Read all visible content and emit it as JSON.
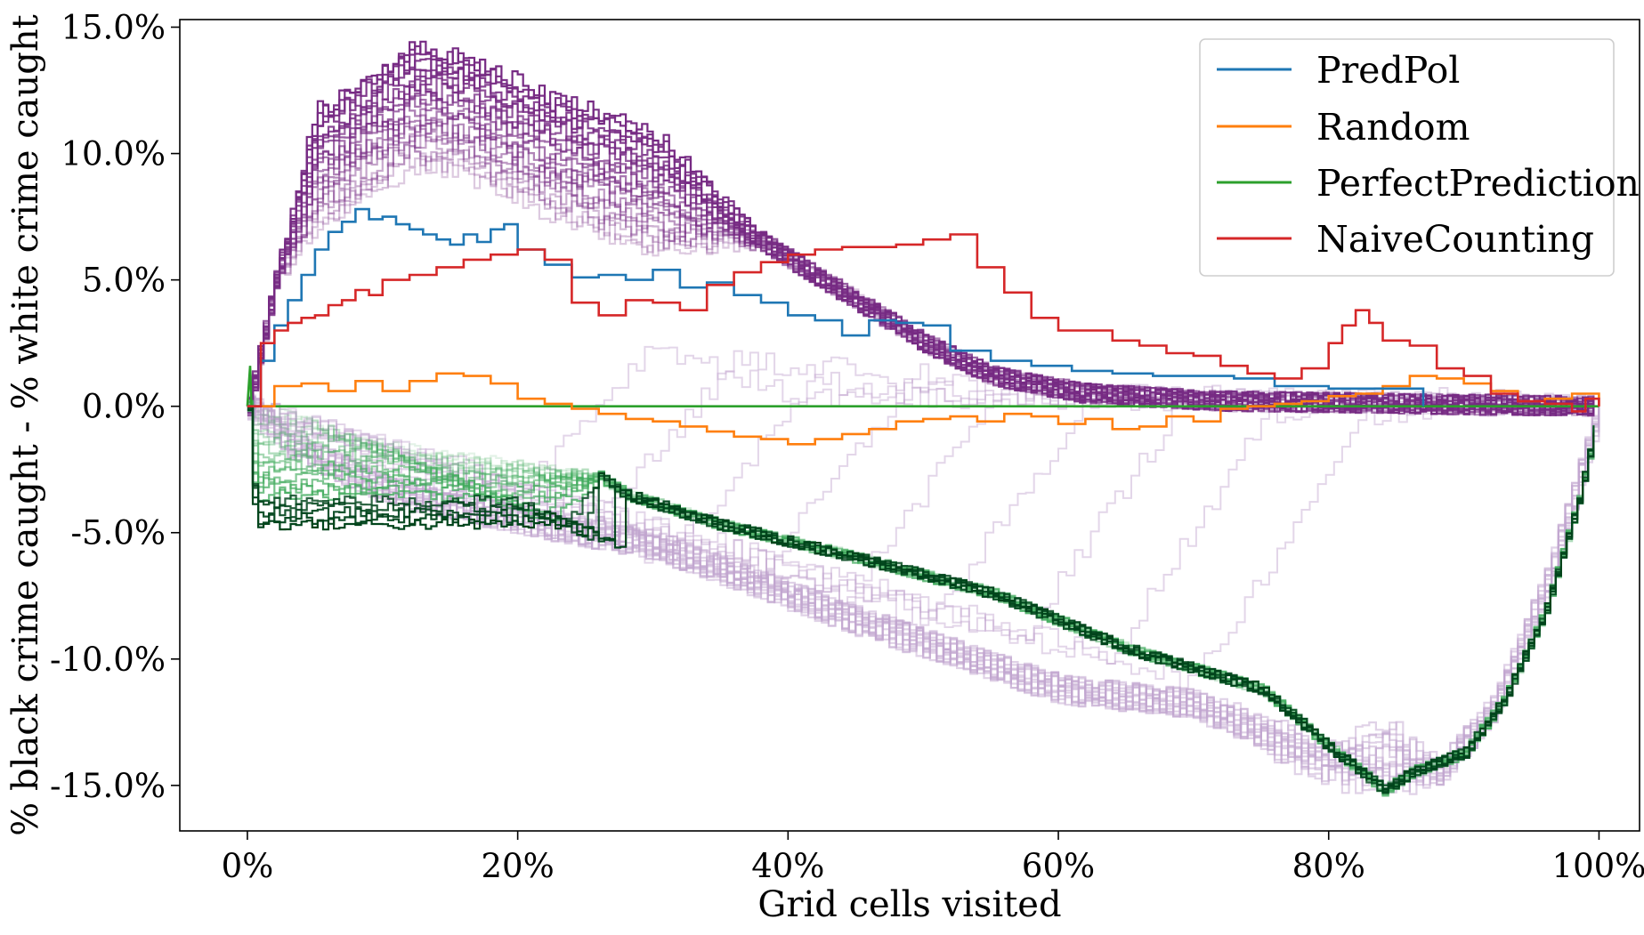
{
  "chart_data": {
    "type": "line",
    "xlabel": "Grid cells visited",
    "ylabel": "% black crime caught - % white crime caught",
    "xlim": [
      -5,
      103
    ],
    "ylim": [
      -16.8,
      15.3
    ],
    "xticks": [
      0,
      20,
      40,
      60,
      80,
      100
    ],
    "xtick_labels": [
      "0%",
      "20%",
      "40%",
      "60%",
      "80%",
      "100%"
    ],
    "yticks": [
      15,
      10,
      5,
      0,
      -5,
      -10,
      -15
    ],
    "ytick_labels": [
      "15.0%",
      "10.0%",
      "5.0%",
      "0.0%",
      "-5.0%",
      "-10.0%",
      "-15.0%"
    ],
    "grid": false,
    "legend_position": "top-right",
    "colors": {
      "PredPol": "#1f77b4",
      "Random": "#ff7f0e",
      "PerfectPrediction": "#2ca02c",
      "NaiveCounting": "#d62728",
      "purple_family": "#762a83",
      "green_family": "#1b5e20"
    },
    "series": [
      {
        "name": "PredPol",
        "x": [
          0,
          1,
          2,
          3,
          4,
          5,
          6,
          7,
          8,
          9,
          10,
          11,
          12,
          13,
          14,
          15,
          16,
          17,
          18,
          19,
          20,
          22,
          24,
          26,
          28,
          30,
          32,
          34,
          36,
          38,
          40,
          42,
          44,
          46,
          48,
          50,
          52,
          55,
          58,
          61,
          64,
          67,
          70,
          73,
          76,
          80,
          84,
          87
        ],
        "values": [
          0,
          1.8,
          3.2,
          4.2,
          5.2,
          6.2,
          6.9,
          7.3,
          7.8,
          7.4,
          7.5,
          7.2,
          7.0,
          6.8,
          6.6,
          6.4,
          6.8,
          6.5,
          7.0,
          7.2,
          6.2,
          5.6,
          5.1,
          5.2,
          5.0,
          5.4,
          4.7,
          4.9,
          4.4,
          4.1,
          3.6,
          3.4,
          2.8,
          3.4,
          3.3,
          3.2,
          2.2,
          1.8,
          1.6,
          1.4,
          1.3,
          1.2,
          1.2,
          1.1,
          0.8,
          0.7,
          0.7,
          0
        ]
      },
      {
        "name": "Random",
        "x": [
          0,
          2,
          4,
          6,
          8,
          10,
          12,
          14,
          16,
          18,
          20,
          22,
          24,
          26,
          28,
          30,
          32,
          34,
          36,
          38,
          40,
          42,
          44,
          46,
          48,
          50,
          52,
          54,
          56,
          58,
          60,
          62,
          64,
          66,
          68,
          70,
          72,
          74,
          76,
          78,
          80,
          82,
          84,
          86,
          88,
          90,
          92,
          94,
          96,
          98,
          100
        ],
        "values": [
          0,
          0.8,
          0.9,
          0.6,
          1.0,
          0.6,
          1.0,
          1.3,
          1.2,
          0.9,
          0.3,
          0.1,
          -0.1,
          -0.3,
          -0.5,
          -0.6,
          -0.8,
          -1.0,
          -1.2,
          -1.3,
          -1.5,
          -1.3,
          -1.1,
          -0.9,
          -0.6,
          -0.5,
          -0.4,
          -0.6,
          -0.3,
          -0.4,
          -0.7,
          -0.5,
          -0.9,
          -0.8,
          -0.4,
          -0.6,
          -0.1,
          0,
          0.1,
          0.2,
          0.4,
          0.5,
          0.8,
          1.2,
          1.1,
          0.9,
          0.6,
          0.2,
          0.3,
          0.5,
          0
        ]
      },
      {
        "name": "PerfectPrediction",
        "x": [
          0,
          0.2,
          0.3,
          100
        ],
        "values": [
          0,
          1.6,
          0,
          0
        ]
      },
      {
        "name": "NaiveCounting",
        "x": [
          0,
          1,
          2,
          3,
          4,
          5,
          6,
          7,
          8,
          9,
          10,
          12,
          14,
          16,
          18,
          20,
          22,
          24,
          26,
          28,
          30,
          32,
          34,
          36,
          38,
          40,
          42,
          44,
          46,
          48,
          50,
          52,
          54,
          56,
          58,
          60,
          62,
          64,
          66,
          68,
          70,
          72,
          74,
          76,
          78,
          80,
          81,
          82,
          83,
          84,
          86,
          88,
          90,
          92,
          94,
          96,
          98,
          99,
          100
        ],
        "values": [
          0,
          2.5,
          3.0,
          3.3,
          3.5,
          3.6,
          4.0,
          4.2,
          4.6,
          4.4,
          5.0,
          5.2,
          5.5,
          5.8,
          6.0,
          6.2,
          5.8,
          4.1,
          3.6,
          4.2,
          4.1,
          3.8,
          4.8,
          5.3,
          5.7,
          6.0,
          6.2,
          6.3,
          6.3,
          6.4,
          6.6,
          6.8,
          5.5,
          4.5,
          3.5,
          3.0,
          3.0,
          2.6,
          2.4,
          2.1,
          2.0,
          1.6,
          1.3,
          1.1,
          1.5,
          2.5,
          3.2,
          3.8,
          3.3,
          2.6,
          2.4,
          1.5,
          1.2,
          0.5,
          0.2,
          0.1,
          -0.2,
          0.3,
          0
        ]
      }
    ]
  },
  "legend": {
    "items": [
      {
        "label": "PredPol",
        "color": "#1f77b4"
      },
      {
        "label": "Random",
        "color": "#ff7f0e"
      },
      {
        "label": "PerfectPrediction",
        "color": "#2ca02c"
      },
      {
        "label": "NaiveCounting",
        "color": "#d62728"
      }
    ]
  }
}
